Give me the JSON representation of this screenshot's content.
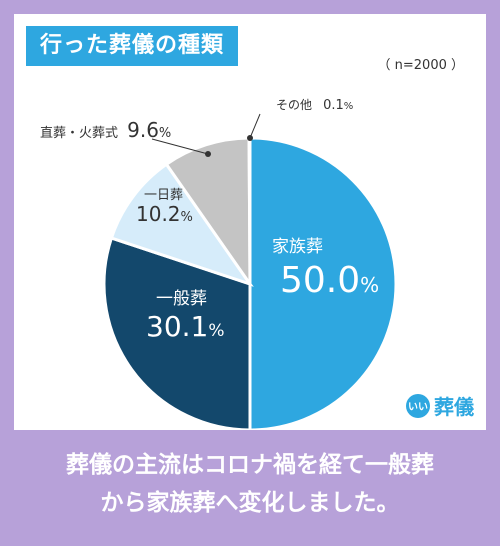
{
  "header": {
    "title": "行った葬儀の種類",
    "sample": "（ n=2000 ）"
  },
  "chart_data": {
    "type": "pie",
    "title": "行った葬儀の種類",
    "categories": [
      "家族葬",
      "一般葬",
      "一日葬",
      "直葬・火葬式",
      "その他"
    ],
    "values": [
      50.0,
      30.1,
      10.2,
      9.6,
      0.1
    ],
    "units": "%",
    "colors": [
      "#2ea7e0",
      "#13486c",
      "#d6ecfa",
      "#c4c4c4",
      "#999999"
    ]
  },
  "labels": {
    "kazoku": {
      "name": "家族葬",
      "value": "50.0",
      "unit": "%"
    },
    "ippan": {
      "name": "一般葬",
      "value": "30.1",
      "unit": "%"
    },
    "ichinichi": {
      "name": "一日葬",
      "value": "10.2",
      "unit": "%"
    },
    "chokuso": {
      "name": "直葬・火葬式",
      "value": "9.6",
      "unit": "%"
    },
    "other": {
      "name": "その他",
      "value": "0.1",
      "unit": "%"
    }
  },
  "brand": {
    "circle": "いい",
    "text": "葬儀"
  },
  "caption": {
    "line1": "葬儀の主流はコロナ禍を経て一般葬",
    "line2": "から家族葬へ変化しました。"
  }
}
